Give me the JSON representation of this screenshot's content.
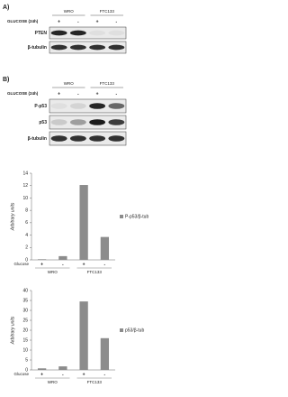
{
  "panel_a": {
    "label": "A)",
    "condition": "GLUCOSE (24h)",
    "groups": [
      "WRO",
      "FTC133"
    ],
    "signs": [
      "+",
      "-",
      "+",
      "-"
    ],
    "rows": [
      "PTEN",
      "β-tubulin"
    ]
  },
  "panel_b": {
    "label": "B)",
    "condition": "GLUCOSE (24h)",
    "groups": [
      "WRO",
      "FTC133"
    ],
    "signs": [
      "+",
      "-",
      "+",
      "-"
    ],
    "rows": [
      "P-p53",
      "p53",
      "β-tubulin"
    ]
  },
  "chart_data": [
    {
      "type": "bar",
      "y_label": "Arbitrary units",
      "x_label": "Glucose",
      "categories": [
        "+",
        "-",
        "+",
        "-"
      ],
      "groups": [
        "WRO",
        "FTC133"
      ],
      "series": [
        {
          "name": "P-p53/β-tub",
          "color": "#8c8c8c",
          "values": [
            0.1,
            0.6,
            12.1,
            3.7
          ]
        }
      ],
      "ylim": [
        0,
        14
      ],
      "yticks": [
        0,
        2,
        4,
        6,
        8,
        10,
        12,
        14
      ]
    },
    {
      "type": "bar",
      "y_label": "Arbitrary units",
      "x_label": "Glucose",
      "categories": [
        "+",
        "-",
        "+",
        "-"
      ],
      "groups": [
        "WRO",
        "FTC133"
      ],
      "series": [
        {
          "name": "p53/β-tub",
          "color": "#8c8c8c",
          "values": [
            0.8,
            1.8,
            34.5,
            16
          ]
        }
      ],
      "ylim": [
        0,
        40
      ],
      "yticks": [
        0,
        5,
        10,
        15,
        20,
        25,
        30,
        35,
        40
      ]
    }
  ]
}
